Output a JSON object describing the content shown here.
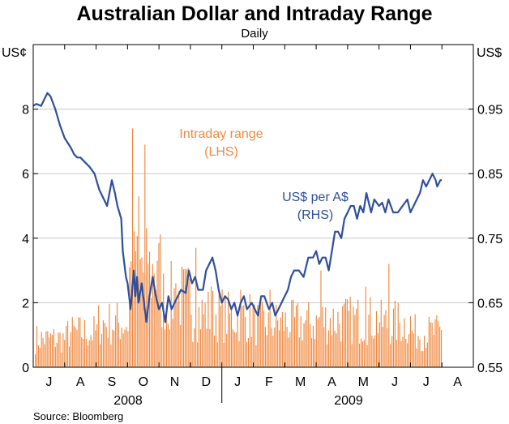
{
  "title": "Australian Dollar and Intraday Range",
  "subtitle": "Daily",
  "source": "Source: Bloomberg",
  "colors": {
    "bars": "#f0883e",
    "line": "#2e4f9c",
    "axis": "#000000",
    "grid": "#c8c8c8"
  },
  "chart_data": {
    "type": "bar+line",
    "left_axis": {
      "unit": "US¢",
      "range": [
        0,
        10
      ],
      "ticks": [
        "0",
        "2",
        "4",
        "6",
        "8"
      ]
    },
    "right_axis": {
      "unit": "US$",
      "range": [
        0.55,
        1.05
      ],
      "ticks": [
        "0.55",
        "0.65",
        "0.75",
        "0.85",
        "0.95"
      ]
    },
    "months": [
      "J",
      "A",
      "S",
      "O",
      "N",
      "D",
      "J",
      "F",
      "M",
      "A",
      "M",
      "J",
      "J",
      "A"
    ],
    "years": [
      "2008",
      "2009"
    ],
    "series": [
      {
        "name": "Intraday range",
        "label_lines": [
          "Intraday range",
          "(LHS)"
        ],
        "axis": "left",
        "type": "bar",
        "monthly_typical": [
          0.9,
          1.1,
          1.4,
          3.0,
          2.2,
          1.7,
          1.6,
          1.4,
          1.4,
          1.5,
          1.5,
          1.4,
          1.1,
          1.0
        ],
        "spikes": [
          {
            "x": 3.0,
            "v": 3.1
          },
          {
            "x": 3.12,
            "v": 7.4
          },
          {
            "x": 3.22,
            "v": 3.6
          },
          {
            "x": 3.32,
            "v": 5.3
          },
          {
            "x": 3.4,
            "v": 3.4
          },
          {
            "x": 3.52,
            "v": 6.9
          },
          {
            "x": 3.62,
            "v": 3.2
          },
          {
            "x": 3.8,
            "v": 2.9
          },
          {
            "x": 3.9,
            "v": 3.3
          },
          {
            "x": 4.1,
            "v": 2.9
          },
          {
            "x": 4.48,
            "v": 2.6
          },
          {
            "x": 5.15,
            "v": 3.7
          },
          {
            "x": 5.6,
            "v": 2.5
          },
          {
            "x": 6.55,
            "v": 2.4
          },
          {
            "x": 7.5,
            "v": 2.4
          },
          {
            "x": 9.1,
            "v": 3.0
          },
          {
            "x": 10.55,
            "v": 2.5
          },
          {
            "x": 11.3,
            "v": 3.2
          },
          {
            "x": 13.0,
            "v": 1.9
          }
        ]
      },
      {
        "name": "US$ per A$",
        "label_lines": [
          "US$ per A$",
          "(RHS)"
        ],
        "axis": "right",
        "type": "line",
        "x": [
          0.0,
          0.1,
          0.25,
          0.45,
          0.55,
          0.7,
          0.85,
          1.0,
          1.2,
          1.3,
          1.4,
          1.5,
          1.6,
          1.8,
          1.95,
          2.1,
          2.25,
          2.35,
          2.5,
          2.6,
          2.68,
          2.8,
          2.85,
          2.95,
          3.0,
          3.05,
          3.1,
          3.15,
          3.2,
          3.25,
          3.3,
          3.35,
          3.45,
          3.55,
          3.6,
          3.7,
          3.8,
          3.9,
          4.0,
          4.1,
          4.2,
          4.3,
          4.4,
          4.5,
          4.6,
          4.7,
          4.85,
          4.95,
          5.05,
          5.15,
          5.25,
          5.4,
          5.5,
          5.6,
          5.7,
          5.8,
          5.9,
          6.0,
          6.1,
          6.2,
          6.3,
          6.4,
          6.5,
          6.6,
          6.7,
          6.8,
          6.95,
          7.05,
          7.15,
          7.25,
          7.35,
          7.5,
          7.6,
          7.7,
          7.8,
          7.9,
          8.0,
          8.1,
          8.2,
          8.3,
          8.45,
          8.6,
          8.75,
          8.9,
          9.0,
          9.1,
          9.2,
          9.3,
          9.4,
          9.5,
          9.6,
          9.7,
          9.8,
          9.9,
          10.0,
          10.1,
          10.2,
          10.3,
          10.4,
          10.5,
          10.6,
          10.75,
          10.85,
          11.0,
          11.1,
          11.2,
          11.3,
          11.45,
          11.6,
          11.75,
          11.9,
          12.0,
          12.1,
          12.2,
          12.3,
          12.4,
          12.5,
          12.6,
          12.7,
          12.8,
          12.85,
          12.95,
          13.0
        ],
        "y": [
          0.955,
          0.958,
          0.955,
          0.975,
          0.97,
          0.95,
          0.925,
          0.905,
          0.89,
          0.88,
          0.875,
          0.875,
          0.87,
          0.86,
          0.85,
          0.825,
          0.81,
          0.8,
          0.84,
          0.82,
          0.8,
          0.78,
          0.73,
          0.69,
          0.68,
          0.66,
          0.64,
          0.67,
          0.7,
          0.66,
          0.69,
          0.65,
          0.68,
          0.64,
          0.62,
          0.66,
          0.69,
          0.66,
          0.64,
          0.65,
          0.62,
          0.66,
          0.64,
          0.65,
          0.66,
          0.67,
          0.665,
          0.7,
          0.68,
          0.69,
          0.67,
          0.67,
          0.7,
          0.71,
          0.72,
          0.7,
          0.67,
          0.65,
          0.66,
          0.655,
          0.64,
          0.65,
          0.63,
          0.65,
          0.66,
          0.64,
          0.65,
          0.64,
          0.63,
          0.66,
          0.66,
          0.64,
          0.65,
          0.63,
          0.64,
          0.65,
          0.66,
          0.67,
          0.69,
          0.7,
          0.7,
          0.69,
          0.72,
          0.72,
          0.73,
          0.71,
          0.72,
          0.72,
          0.7,
          0.73,
          0.76,
          0.76,
          0.75,
          0.78,
          0.79,
          0.8,
          0.8,
          0.78,
          0.8,
          0.79,
          0.82,
          0.79,
          0.81,
          0.8,
          0.805,
          0.79,
          0.81,
          0.79,
          0.79,
          0.8,
          0.81,
          0.79,
          0.8,
          0.81,
          0.82,
          0.84,
          0.83,
          0.84,
          0.85,
          0.84,
          0.83,
          0.84,
          0.84
        ]
      }
    ]
  }
}
